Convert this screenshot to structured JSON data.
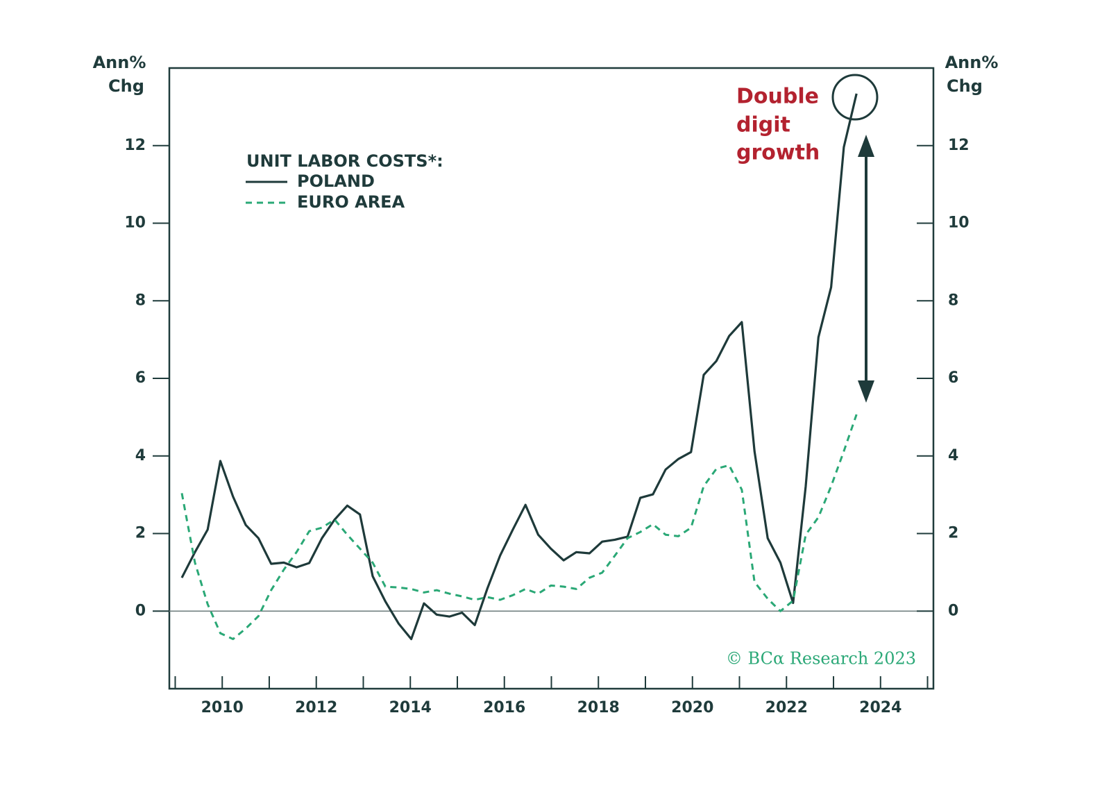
{
  "chart_data": {
    "type": "line",
    "ylabel": [
      "Ann%",
      "Chg"
    ],
    "y2label": [
      "Ann%",
      "Chg"
    ],
    "legend_title": "UNIT LABOR COSTS*:",
    "annotation": [
      "Double",
      "digit",
      "growth"
    ],
    "source": "© BCα Research 2023",
    "xlim": [
      2008.875,
      2025.125
    ],
    "xticks": [
      2010,
      2012,
      2014,
      2016,
      2018,
      2020,
      2022,
      2024
    ],
    "xminorticks": [
      2009,
      2011,
      2013,
      2015,
      2017,
      2019,
      2021,
      2023,
      2025
    ],
    "ylim": [
      -2,
      14
    ],
    "yticks": [
      0,
      2,
      4,
      6,
      8,
      10,
      12
    ],
    "y2lim": [
      -2,
      14
    ],
    "y2ticks": [
      0,
      2,
      4,
      6,
      8,
      10,
      12
    ],
    "x": [
      2009.14,
      2009.42,
      2009.69,
      2009.96,
      2010.23,
      2010.5,
      2010.77,
      2011.04,
      2011.31,
      2011.58,
      2011.85,
      2012.12,
      2012.39,
      2012.66,
      2012.93,
      2013.2,
      2013.47,
      2013.75,
      2014.02,
      2014.29,
      2014.56,
      2014.83,
      2015.1,
      2015.37,
      2015.64,
      2015.91,
      2016.18,
      2016.45,
      2016.72,
      2016.99,
      2017.26,
      2017.53,
      2017.81,
      2018.08,
      2018.35,
      2018.62,
      2018.89,
      2019.16,
      2019.43,
      2019.7,
      2019.97,
      2020.24,
      2020.51,
      2020.78,
      2021.05,
      2021.32,
      2021.6,
      2021.87,
      2022.14,
      2022.41,
      2022.68,
      2022.95,
      2023.22,
      2023.49
    ],
    "series": [
      {
        "name": "POLAND",
        "color": "#1e3a3a",
        "dash": false,
        "values": [
          0.86,
          1.52,
          2.1,
          3.87,
          2.95,
          2.22,
          1.88,
          1.22,
          1.25,
          1.13,
          1.24,
          1.88,
          2.36,
          2.72,
          2.49,
          0.9,
          0.25,
          -0.32,
          -0.72,
          0.2,
          -0.09,
          -0.14,
          -0.04,
          -0.36,
          0.59,
          1.43,
          2.1,
          2.74,
          1.97,
          1.61,
          1.31,
          1.52,
          1.49,
          1.79,
          1.84,
          1.92,
          2.92,
          3.01,
          3.65,
          3.92,
          4.1,
          6.09,
          6.45,
          7.09,
          7.45,
          4.12,
          1.88,
          1.25,
          0.21,
          3.22,
          7.06,
          8.35,
          11.96,
          13.34
        ]
      },
      {
        "name": "EURO AREA",
        "color": "#2aa876",
        "dash": true,
        "values": [
          3.04,
          1.25,
          0.18,
          -0.57,
          -0.72,
          -0.45,
          -0.13,
          0.54,
          1.07,
          1.52,
          2.06,
          2.15,
          2.36,
          1.97,
          1.61,
          1.25,
          0.63,
          0.61,
          0.57,
          0.48,
          0.54,
          0.45,
          0.38,
          0.29,
          0.36,
          0.29,
          0.41,
          0.57,
          0.45,
          0.66,
          0.63,
          0.57,
          0.86,
          0.99,
          1.43,
          1.88,
          2.04,
          2.24,
          1.97,
          1.93,
          2.15,
          3.22,
          3.67,
          3.76,
          3.13,
          0.75,
          0.32,
          0.0,
          0.27,
          1.97,
          2.42,
          3.22,
          4.12,
          5.07
        ]
      }
    ]
  }
}
